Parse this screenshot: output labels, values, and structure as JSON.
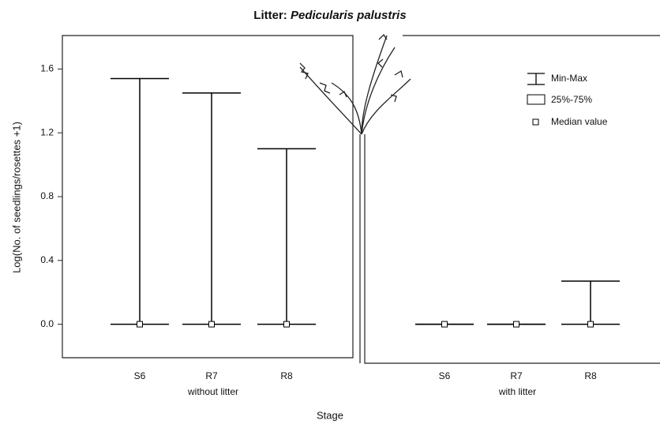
{
  "chart_data": {
    "type": "box",
    "title": {
      "prefix": "Litter:",
      "species": "Pedicularis palustris"
    },
    "ylabel": "Log(No. of seedlings/rosettes +1)",
    "xlabel": "Stage",
    "ylim": [
      -0.21,
      1.81
    ],
    "yticks": [
      {
        "value": 0,
        "label": "0.0"
      },
      0.4,
      0.8,
      1.2,
      1.6
    ],
    "color": "#000000",
    "legend": {
      "position": "upper right",
      "entries": [
        "Min-Max",
        "25%-75%",
        "Median value"
      ]
    },
    "groups": [
      {
        "name": "without litter",
        "categories": [
          "S6",
          "R7",
          "R8"
        ],
        "min": [
          0,
          0,
          0
        ],
        "q1": [
          0,
          0,
          0
        ],
        "median": [
          0,
          0,
          0
        ],
        "q3": [
          0,
          0,
          0
        ],
        "max": [
          1.54,
          1.45,
          1.1
        ]
      },
      {
        "name": "with litter",
        "categories": [
          "S6",
          "R7",
          "R8"
        ],
        "min": [
          0,
          0,
          0
        ],
        "q1": [
          0,
          0,
          0
        ],
        "median": [
          0,
          0,
          0
        ],
        "q3": [
          0,
          0,
          0
        ],
        "max": [
          0,
          0,
          0.27
        ]
      }
    ]
  }
}
